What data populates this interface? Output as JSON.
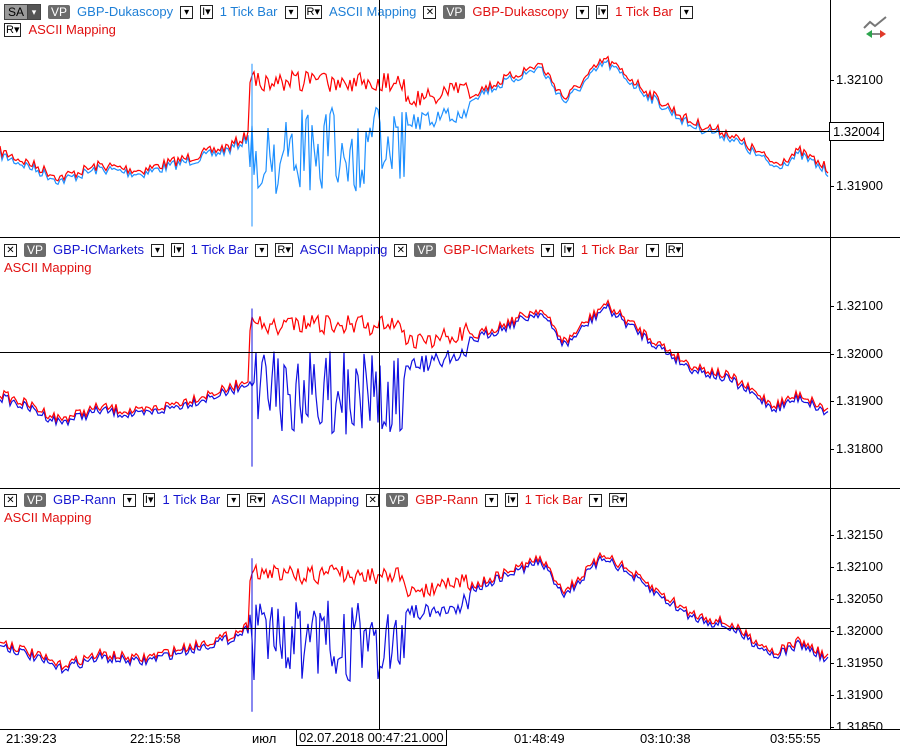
{
  "panels": [
    {
      "row1": {
        "sa": "SA",
        "vp1": "VP",
        "sym1": "GBP-Dukascopy",
        "bar1": "1 Tick Bar",
        "map1": "ASCII Mapping",
        "vp2": "VP",
        "sym2": "GBP-Dukascopy",
        "bar2": "1 Tick Bar"
      },
      "row2": {
        "map2": "ASCII Mapping"
      },
      "y_labels": [
        "1.32100",
        "1.32004",
        "1.31900"
      ],
      "cursor_value": "1.32004"
    },
    {
      "row1": {
        "vp1": "VP",
        "sym1": "GBP-ICMarkets",
        "bar1": "1 Tick Bar",
        "map1": "ASCII Mapping",
        "vp2": "VP",
        "sym2": "GBP-ICMarkets",
        "bar2": "1 Tick Bar"
      },
      "row2": {
        "map2": "ASCII Mapping"
      },
      "y_labels": [
        "1.32100",
        "1.32000",
        "1.31900",
        "1.31800"
      ]
    },
    {
      "row1": {
        "vp1": "VP",
        "sym1": "GBP-Rann",
        "bar1": "1 Tick Bar",
        "map1": "ASCII Mapping",
        "vp2": "VP",
        "sym2": "GBP-Rann",
        "bar2": "1 Tick Bar"
      },
      "row2": {
        "map2": "ASCII Mapping"
      },
      "y_labels": [
        "1.32150",
        "1.32100",
        "1.32050",
        "1.32000",
        "1.31950",
        "1.31900",
        "1.31850"
      ]
    }
  ],
  "x_axis": {
    "labels": [
      "21:39:23",
      "22:15:58",
      "июл",
      "01:48:49",
      "03:10:38",
      "03:55:55"
    ],
    "cursor_label": "02.07.2018 00:47:21.000"
  },
  "icons": {
    "chart": "chart-toggle-icon",
    "close": "close-icon",
    "dropdown": "chevron-down-icon"
  },
  "colors": {
    "series_a_blue_1": "#1e90ff",
    "series_a_blue_2": "#1010e0",
    "series_b_red": "#ff0000"
  }
}
